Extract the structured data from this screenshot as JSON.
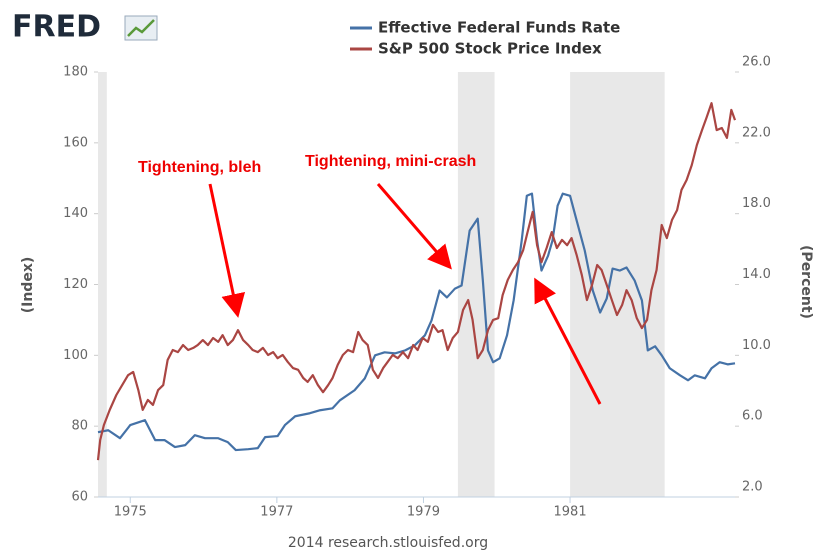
{
  "branding": {
    "logo": "FRED"
  },
  "chart_data": {
    "type": "line",
    "source": "2014 research.stlouisfed.org",
    "ylabel": "(Index)",
    "y2label": "(Percent)",
    "legend": "top",
    "xlim": [
      1974.56,
      1983.25
    ],
    "xticks": [
      1975,
      1977,
      1979,
      1981
    ],
    "ylim": [
      60,
      180
    ],
    "yticks": [
      60,
      80,
      100,
      120,
      140,
      160,
      180
    ],
    "y2lim": [
      2,
      26
    ],
    "y2ticks": [
      {
        "value": 2,
        "label": "2.0"
      },
      {
        "value": 6,
        "label": "6.0"
      },
      {
        "value": 10,
        "label": "10.0"
      },
      {
        "value": 14,
        "label": "14.0"
      },
      {
        "value": 18,
        "label": "18.0"
      },
      {
        "value": 22,
        "label": "22.0"
      },
      {
        "value": 26,
        "label": "26.0"
      }
    ],
    "recessions": [
      {
        "start": 1974.56,
        "end": 1974.68
      },
      {
        "start": 1979.47,
        "end": 1979.97
      },
      {
        "start": 1981.0,
        "end": 1982.29
      }
    ],
    "annotations": [
      "Tightening, bleh",
      "Tightening, mini-crash"
    ],
    "series": [
      {
        "name": "Effective Federal Funds Rate",
        "color": "#4572a7",
        "axis": "y2",
        "x": [
          1974.56,
          1974.7,
          1974.86,
          1975.0,
          1975.2,
          1975.34,
          1975.47,
          1975.61,
          1975.75,
          1975.88,
          1976.02,
          1976.2,
          1976.33,
          1976.44,
          1976.61,
          1976.74,
          1976.84,
          1977.01,
          1977.11,
          1977.25,
          1977.45,
          1977.59,
          1977.76,
          1977.86,
          1978.06,
          1978.2,
          1978.34,
          1978.47,
          1978.61,
          1978.75,
          1978.88,
          1979.02,
          1979.11,
          1979.22,
          1979.32,
          1979.43,
          1979.52,
          1979.63,
          1979.74,
          1979.81,
          1979.88,
          1979.95,
          1980.04,
          1980.14,
          1980.23,
          1980.34,
          1980.41,
          1980.48,
          1980.55,
          1980.61,
          1980.7,
          1980.76,
          1980.83,
          1980.9,
          1981.0,
          1981.09,
          1981.2,
          1981.31,
          1981.41,
          1981.5,
          1981.58,
          1981.68,
          1981.77,
          1981.88,
          1981.98,
          1982.06,
          1982.16,
          1982.25,
          1982.36,
          1982.5,
          1982.61,
          1982.7,
          1982.84,
          1982.93,
          1983.04,
          1983.15,
          1983.25
        ],
        "values": [
          5.66,
          5.77,
          5.32,
          6.06,
          6.34,
          5.21,
          5.21,
          4.82,
          4.93,
          5.49,
          5.32,
          5.32,
          5.1,
          4.65,
          4.7,
          4.76,
          5.38,
          5.44,
          6.06,
          6.56,
          6.73,
          6.9,
          7.01,
          7.46,
          8.03,
          8.7,
          10.0,
          10.17,
          10.11,
          10.28,
          10.56,
          11.13,
          11.97,
          13.66,
          13.27,
          13.77,
          13.94,
          17.04,
          17.72,
          14.23,
          10.28,
          9.61,
          9.83,
          11.13,
          13.1,
          16.48,
          19.01,
          19.13,
          16.48,
          14.79,
          15.63,
          16.48,
          18.45,
          19.13,
          19.01,
          17.61,
          15.92,
          13.66,
          12.42,
          13.21,
          14.9,
          14.79,
          14.96,
          14.23,
          13.1,
          10.28,
          10.51,
          10.0,
          9.27,
          8.87,
          8.59,
          8.87,
          8.7,
          9.27,
          9.61,
          9.49,
          9.55
        ]
      },
      {
        "name": "S&P 500 Stock Price Index",
        "color": "#aa4643",
        "x": [
          1974.56,
          1974.59,
          1974.64,
          1974.72,
          1974.81,
          1974.89,
          1974.97,
          1975.04,
          1975.11,
          1975.17,
          1975.24,
          1975.31,
          1975.38,
          1975.45,
          1975.51,
          1975.58,
          1975.65,
          1975.72,
          1975.79,
          1975.86,
          1975.92,
          1975.99,
          1976.06,
          1976.13,
          1976.2,
          1976.26,
          1976.33,
          1976.4,
          1976.47,
          1976.54,
          1976.61,
          1976.67,
          1976.74,
          1976.81,
          1976.88,
          1976.95,
          1977.01,
          1977.08,
          1977.15,
          1977.22,
          1977.29,
          1977.36,
          1977.42,
          1977.49,
          1977.56,
          1977.63,
          1977.7,
          1977.76,
          1977.83,
          1977.9,
          1977.97,
          1978.04,
          1978.11,
          1978.17,
          1978.24,
          1978.31,
          1978.38,
          1978.45,
          1978.51,
          1978.58,
          1978.65,
          1978.72,
          1978.79,
          1978.86,
          1978.92,
          1978.99,
          1979.06,
          1979.13,
          1979.2,
          1979.26,
          1979.33,
          1979.4,
          1979.47,
          1979.54,
          1979.61,
          1979.67,
          1979.74,
          1979.81,
          1979.88,
          1979.95,
          1980.02,
          1980.08,
          1980.15,
          1980.22,
          1980.29,
          1980.36,
          1980.42,
          1980.49,
          1980.55,
          1980.61,
          1980.68,
          1980.75,
          1980.82,
          1980.89,
          1980.96,
          1981.02,
          1981.09,
          1981.16,
          1981.23,
          1981.3,
          1981.37,
          1981.43,
          1981.5,
          1981.57,
          1981.64,
          1981.71,
          1981.77,
          1981.84,
          1981.91,
          1981.98,
          1982.05,
          1982.11,
          1982.18,
          1982.25,
          1982.32,
          1982.39,
          1982.46,
          1982.52,
          1982.59,
          1982.66,
          1982.73,
          1982.8,
          1982.86,
          1982.93,
          1983.0,
          1983.07,
          1983.14,
          1983.2,
          1983.25
        ],
        "values": [
          70.4,
          76.1,
          80.3,
          84.6,
          88.8,
          91.6,
          94.4,
          95.3,
          90.2,
          84.6,
          87.4,
          86.0,
          90.2,
          91.6,
          98.7,
          101.5,
          100.9,
          102.9,
          101.5,
          102.1,
          102.9,
          104.3,
          102.9,
          104.9,
          103.8,
          105.7,
          102.9,
          104.3,
          107.1,
          104.3,
          102.9,
          101.5,
          100.9,
          102.1,
          100.1,
          100.9,
          99.2,
          100.1,
          98.1,
          96.4,
          95.9,
          93.6,
          92.5,
          94.4,
          91.6,
          89.6,
          91.6,
          93.6,
          97.3,
          100.1,
          101.5,
          100.9,
          106.6,
          104.3,
          102.9,
          95.9,
          93.6,
          96.4,
          98.1,
          100.1,
          99.2,
          100.9,
          99.2,
          102.9,
          101.5,
          104.9,
          103.8,
          108.6,
          106.6,
          107.1,
          101.5,
          104.9,
          106.6,
          112.8,
          115.6,
          110.0,
          99.2,
          101.5,
          107.1,
          110.0,
          110.5,
          117.0,
          121.3,
          124.1,
          126.3,
          129.7,
          134.8,
          140.5,
          131.1,
          126.3,
          130.3,
          134.8,
          130.3,
          132.6,
          131.1,
          133.1,
          128.3,
          122.7,
          115.6,
          119.9,
          125.5,
          124.1,
          119.9,
          115.6,
          111.4,
          114.2,
          118.4,
          115.6,
          110.5,
          107.7,
          110.0,
          118.4,
          124.1,
          136.8,
          133.1,
          138.2,
          141.0,
          146.7,
          149.5,
          153.7,
          159.4,
          163.6,
          167.0,
          171.2,
          163.6,
          164.2,
          161.4,
          169.3,
          166.4
        ]
      }
    ]
  }
}
